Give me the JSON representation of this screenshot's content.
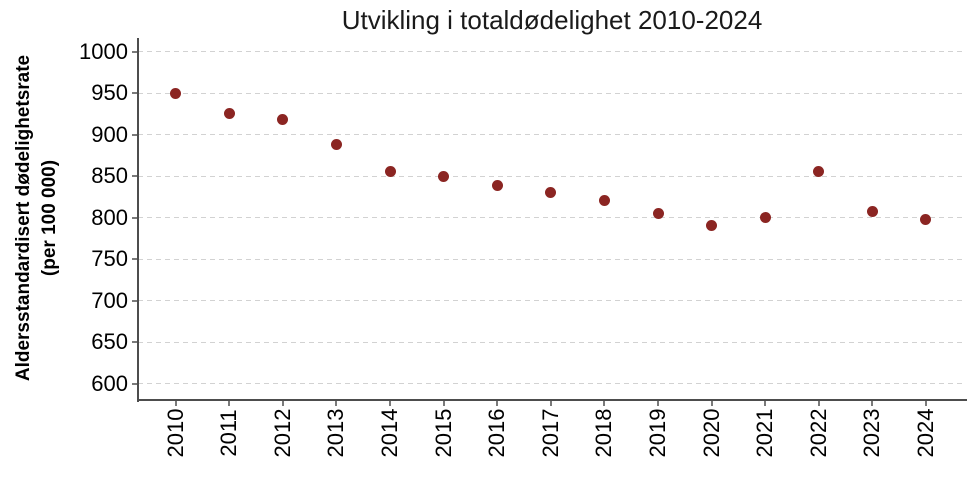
{
  "chart_data": {
    "type": "scatter",
    "title": "Utvikling i totaldødelighet 2010-2024",
    "ylabel": {
      "line1": "Aldersstandardisert dødelighetsrate",
      "line2": "(per 100 000)"
    },
    "xlabel": "",
    "categories": [
      "2010",
      "2011",
      "2012",
      "2013",
      "2014",
      "2015",
      "2016",
      "2017",
      "2018",
      "2019",
      "2020",
      "2021",
      "2022",
      "2023",
      "2024"
    ],
    "series": [
      {
        "name": "Aldersstandardisert dødelighetsrate per 100 000",
        "values": [
          950,
          925,
          918,
          888,
          856,
          849,
          839,
          830,
          820,
          805,
          790,
          800,
          855,
          807,
          797
        ]
      }
    ],
    "yticks": [
      1000,
      950,
      900,
      850,
      800,
      750,
      700,
      650,
      600
    ],
    "ylim": [
      600,
      1000
    ],
    "grid": "horizontal-dashed",
    "legend": "none",
    "colors": {
      "marker": "#8B2522",
      "gridline": "#D2D2D2",
      "axis": "#4D4D4D",
      "tick": "#7A7A7A",
      "text": "#000000",
      "title_text": "#1A1A1A"
    }
  }
}
